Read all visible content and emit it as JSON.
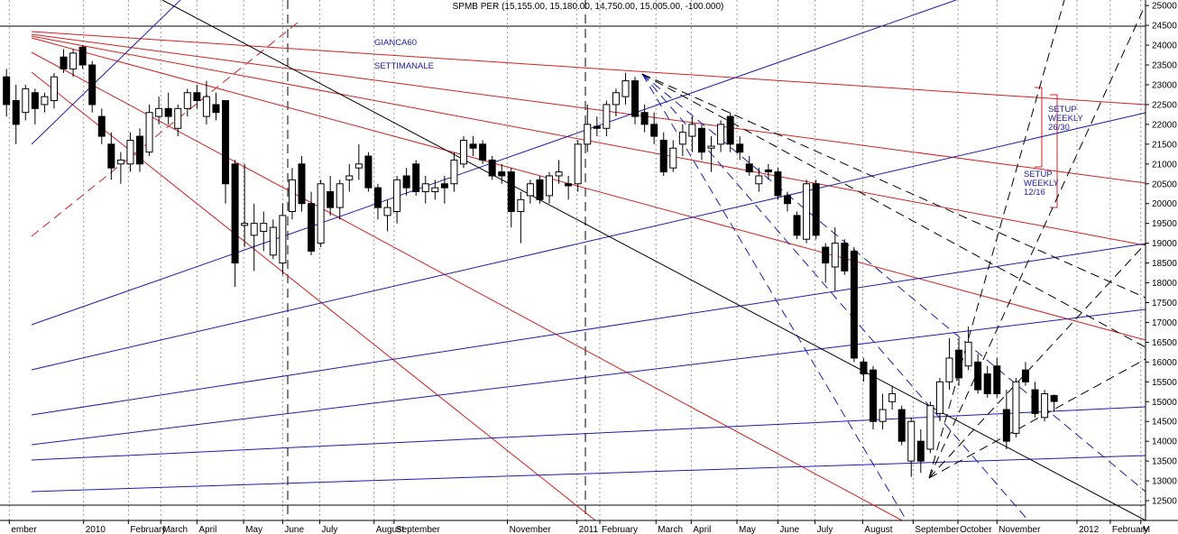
{
  "chart_data": {
    "type": "candlestick",
    "title": "SPMB PER (15,155.00, 15,180.00, 14,750.00, 15,005.00, -100.000)",
    "open": [
      23200,
      22600,
      22300,
      22800,
      22500,
      22600,
      23700,
      23400,
      23950,
      23500,
      22200,
      21500,
      21000,
      21000,
      21700,
      21300,
      22200,
      22400,
      21900,
      22400,
      22800,
      22200,
      22500,
      22600,
      21000,
      19450,
      19200,
      19300,
      18700,
      18500,
      19800,
      21000,
      20000,
      19000,
      20300,
      19900,
      20600,
      20900,
      21200,
      20400,
      19700,
      19800,
      20700,
      21000,
      20300,
      20300,
      20500,
      20500,
      21000,
      21500,
      21500,
      21100,
      20800,
      20800,
      19800,
      20200,
      20600,
      20200,
      20700,
      20500,
      20500,
      21500,
      21950,
      21900,
      22500,
      22700,
      23100,
      22300,
      22000,
      21600,
      20900,
      21500,
      21700,
      21900,
      21400,
      21500,
      22200,
      21500,
      21000,
      20500,
      20850,
      20800,
      20200,
      19700,
      19100,
      20500,
      18900,
      18400,
      19000,
      18800,
      16000,
      15800,
      14500,
      15000,
      14800,
      13500,
      14000,
      13800,
      14700,
      15500,
      16300,
      15900,
      16000,
      15700,
      15900,
      14800,
      14200,
      15800,
      15300,
      14600,
      15155
    ],
    "high": [
      23400,
      23000,
      23000,
      22900,
      22800,
      23300,
      23900,
      23900,
      24000,
      23600,
      22400,
      21800,
      21300,
      21800,
      21900,
      22500,
      22700,
      22800,
      22500,
      22900,
      23000,
      23100,
      22800,
      22600,
      21100,
      21000,
      20000,
      19800,
      19600,
      20000,
      20900,
      21200,
      20300,
      20600,
      20700,
      20600,
      21000,
      21500,
      21300,
      20500,
      20100,
      20700,
      20900,
      21100,
      20700,
      20600,
      20700,
      21300,
      21700,
      21700,
      21600,
      21200,
      21000,
      20900,
      20300,
      20600,
      20700,
      20800,
      21100,
      20700,
      21600,
      22500,
      22200,
      22600,
      22900,
      23300,
      23200,
      22500,
      22300,
      21800,
      21600,
      22000,
      22200,
      22000,
      21700,
      22100,
      22300,
      21700,
      21200,
      20900,
      21000,
      20900,
      20300,
      19800,
      20600,
      20600,
      19000,
      19400,
      19100,
      18900,
      16100,
      15900,
      15200,
      15400,
      14900,
      14600,
      14300,
      15000,
      15600,
      16600,
      16600,
      16900,
      16200,
      15900,
      16100,
      15300,
      15600,
      16000,
      15500,
      15300,
      15180
    ],
    "low": [
      22200,
      21500,
      22100,
      22000,
      22300,
      22400,
      23300,
      23200,
      23400,
      22300,
      21500,
      20600,
      20500,
      20800,
      20800,
      21200,
      22000,
      22000,
      21700,
      22200,
      22400,
      22000,
      22100,
      20000,
      17900,
      18900,
      18300,
      18800,
      18600,
      18200,
      19600,
      19800,
      18700,
      18900,
      19700,
      19600,
      20300,
      20600,
      20300,
      19600,
      19300,
      19500,
      20200,
      20200,
      20000,
      20100,
      20000,
      20300,
      20900,
      21200,
      21000,
      20600,
      20500,
      19400,
      19000,
      20000,
      20000,
      20000,
      20500,
      20100,
      20300,
      21300,
      21700,
      21700,
      22200,
      22500,
      22000,
      21800,
      21500,
      20700,
      20800,
      21200,
      21300,
      21100,
      20800,
      21300,
      21300,
      21100,
      20700,
      20300,
      20600,
      20100,
      19800,
      19100,
      19000,
      19100,
      18000,
      17800,
      18200,
      16000,
      15500,
      14300,
      14300,
      14800,
      13900,
      13100,
      13200,
      13700,
      14500,
      15300,
      15400,
      15800,
      15200,
      15100,
      15100,
      13800,
      14100,
      15400,
      14600,
      14500,
      14750
    ],
    "close": [
      22500,
      22000,
      22900,
      22400,
      22700,
      23200,
      23400,
      23800,
      23500,
      22500,
      21700,
      20900,
      21100,
      21600,
      21000,
      22300,
      22400,
      22200,
      22400,
      22800,
      22600,
      22700,
      22300,
      20500,
      18500,
      19500,
      19500,
      19500,
      19400,
      19700,
      20600,
      20000,
      18800,
      20500,
      19900,
      20500,
      20700,
      21000,
      20400,
      19900,
      19900,
      20600,
      20400,
      20300,
      20500,
      20400,
      20400,
      21100,
      21600,
      21400,
      21100,
      20700,
      20700,
      19800,
      20100,
      20500,
      20100,
      20700,
      20800,
      20450,
      21500,
      22000,
      21900,
      22500,
      22800,
      23100,
      22200,
      22000,
      21700,
      20800,
      21400,
      21800,
      22000,
      21300,
      21450,
      22000,
      21500,
      21300,
      20800,
      20700,
      20800,
      20200,
      20000,
      19200,
      20500,
      19200,
      18500,
      19000,
      18300,
      16100,
      15700,
      14500,
      14800,
      15200,
      14000,
      14500,
      13500,
      14900,
      15500,
      16100,
      15600,
      16500,
      15300,
      15200,
      15200,
      14000,
      15500,
      15500,
      14700,
      15200,
      15005
    ],
    "xlim": [
      -0.68,
      119.6
    ],
    "xticks": [
      {
        "value": 0.3,
        "label": "ember"
      },
      {
        "value": 8.1,
        "label": "2010"
      },
      {
        "value": 12.8,
        "label": "February"
      },
      {
        "value": 16.2,
        "label": "March"
      },
      {
        "value": 20,
        "label": "April"
      },
      {
        "value": 24.9,
        "label": "May"
      },
      {
        "value": 29,
        "label": "June"
      },
      {
        "value": 32.9,
        "label": "July"
      },
      {
        "value": 38.6,
        "label": "August"
      },
      {
        "value": 40.7,
        "label": "September"
      },
      {
        "value": 52.6,
        "label": "November"
      },
      {
        "value": 59.9,
        "label": "2011"
      },
      {
        "value": 62.3,
        "label": "February"
      },
      {
        "value": 68.2,
        "label": "March"
      },
      {
        "value": 71.9,
        "label": "April"
      },
      {
        "value": 76.7,
        "label": "May"
      },
      {
        "value": 81,
        "label": "June"
      },
      {
        "value": 84.9,
        "label": "July"
      },
      {
        "value": 89.9,
        "label": "August"
      },
      {
        "value": 95.2,
        "label": "September"
      },
      {
        "value": 99.9,
        "label": "October"
      },
      {
        "value": 104,
        "label": "November"
      },
      {
        "value": 112.4,
        "label": "2012"
      },
      {
        "value": 115.9,
        "label": "February"
      },
      {
        "value": 119.1,
        "label": "M"
      }
    ],
    "ylim": [
      12000,
      25140
    ],
    "yticks": [
      12500,
      13000,
      13500,
      14000,
      14500,
      15000,
      15500,
      16000,
      16500,
      17000,
      17500,
      18000,
      18500,
      19000,
      19500,
      20000,
      20500,
      21000,
      21500,
      22000,
      22500,
      23000,
      23500,
      24000,
      24500,
      25000
    ],
    "grid": "x",
    "up_color": "#ffffff",
    "down_color": "#000000",
    "annotations": [
      "GIANCA60",
      "SETTIMANALE",
      [
        "SETUP",
        "WEEKLY",
        "26/30"
      ],
      [
        "SETUP",
        "WEEKLY",
        "12/16"
      ]
    ]
  }
}
